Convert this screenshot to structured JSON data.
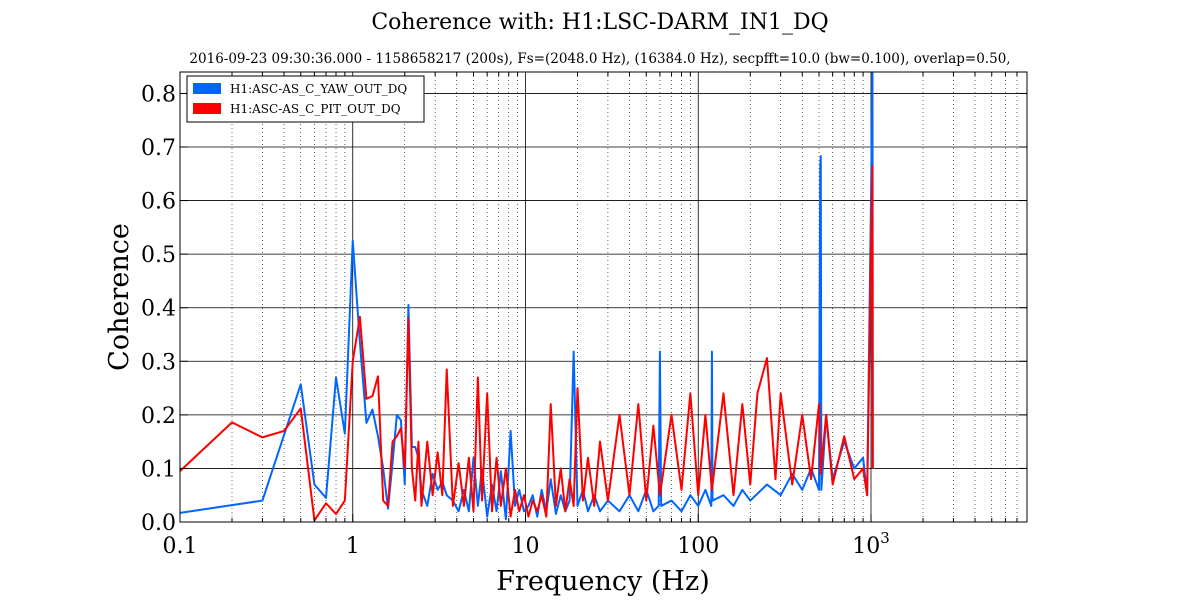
{
  "chart_data": {
    "type": "line",
    "title": "Coherence with:  H1:LSC-DARM_IN1_DQ",
    "subtitle": "2016-09-23 09:30:36.000 - 1158658217 (200s), Fs=(2048.0 Hz), (16384.0 Hz), secpfft=10.0 (bw=0.100), overlap=0.50,",
    "xlabel": "Frequency (Hz)",
    "ylabel": "Coherence",
    "xscale": "log",
    "xlim": [
      0.1,
      8000
    ],
    "ylim": [
      0.0,
      0.84
    ],
    "grid": true,
    "legend": "top-left",
    "xticks": [
      {
        "value": 0.1,
        "label": "0.1"
      },
      {
        "value": 1,
        "label": "1"
      },
      {
        "value": 10,
        "label": "10"
      },
      {
        "value": 100,
        "label": "100"
      },
      {
        "value": 1000,
        "label": "10",
        "exp": "3"
      }
    ],
    "yticks": [
      {
        "value": 0.0,
        "label": "0.0"
      },
      {
        "value": 0.1,
        "label": "0.1"
      },
      {
        "value": 0.2,
        "label": "0.2"
      },
      {
        "value": 0.3,
        "label": "0.3"
      },
      {
        "value": 0.4,
        "label": "0.4"
      },
      {
        "value": 0.5,
        "label": "0.5"
      },
      {
        "value": 0.6,
        "label": "0.6"
      },
      {
        "value": 0.7,
        "label": "0.7"
      },
      {
        "value": 0.8,
        "label": "0.8"
      }
    ],
    "series": [
      {
        "name": "H1:ASC-AS_C_YAW_OUT_DQ",
        "color": "#0066ff",
        "points": [
          [
            0.1,
            0.017
          ],
          [
            0.3,
            0.04
          ],
          [
            0.5,
            0.257
          ],
          [
            0.6,
            0.07
          ],
          [
            0.7,
            0.045
          ],
          [
            0.8,
            0.27
          ],
          [
            0.9,
            0.165
          ],
          [
            1.0,
            0.525
          ],
          [
            1.1,
            0.335
          ],
          [
            1.2,
            0.185
          ],
          [
            1.3,
            0.21
          ],
          [
            1.4,
            0.16
          ],
          [
            1.5,
            0.1
          ],
          [
            1.6,
            0.025
          ],
          [
            1.7,
            0.11
          ],
          [
            1.8,
            0.2
          ],
          [
            1.9,
            0.19
          ],
          [
            2.0,
            0.07
          ],
          [
            2.1,
            0.405
          ],
          [
            2.2,
            0.14
          ],
          [
            2.3,
            0.14
          ],
          [
            2.4,
            0.12
          ],
          [
            2.5,
            0.06
          ],
          [
            2.7,
            0.03
          ],
          [
            2.9,
            0.09
          ],
          [
            3.1,
            0.06
          ],
          [
            3.3,
            0.075
          ],
          [
            3.5,
            0.05
          ],
          [
            3.8,
            0.04
          ],
          [
            4.1,
            0.02
          ],
          [
            4.4,
            0.06
          ],
          [
            4.7,
            0.02
          ],
          [
            5.0,
            0.12
          ],
          [
            5.3,
            0.03
          ],
          [
            5.6,
            0.1
          ],
          [
            6.0,
            0.01
          ],
          [
            6.4,
            0.07
          ],
          [
            6.8,
            0.02
          ],
          [
            7.2,
            0.095
          ],
          [
            7.7,
            0.005
          ],
          [
            8.2,
            0.17
          ],
          [
            8.7,
            0.03
          ],
          [
            9.2,
            0.06
          ],
          [
            9.8,
            0.02
          ],
          [
            10.4,
            0.03
          ],
          [
            11.0,
            0.05
          ],
          [
            11.7,
            0.01
          ],
          [
            12.4,
            0.06
          ],
          [
            13.2,
            0.02
          ],
          [
            14.0,
            0.08
          ],
          [
            15.0,
            0.015
          ],
          [
            16.0,
            0.05
          ],
          [
            17.0,
            0.02
          ],
          [
            18.0,
            0.04
          ],
          [
            19.0,
            0.318
          ],
          [
            20.0,
            0.03
          ],
          [
            21.5,
            0.06
          ],
          [
            23.0,
            0.02
          ],
          [
            25.0,
            0.05
          ],
          [
            27.0,
            0.02
          ],
          [
            30.0,
            0.04
          ],
          [
            35.0,
            0.02
          ],
          [
            40.0,
            0.05
          ],
          [
            45.0,
            0.02
          ],
          [
            50.0,
            0.06
          ],
          [
            55.0,
            0.02
          ],
          [
            59.0,
            0.03
          ],
          [
            60.0,
            0.318
          ],
          [
            61.0,
            0.03
          ],
          [
            70.0,
            0.04
          ],
          [
            80.0,
            0.02
          ],
          [
            90.0,
            0.05
          ],
          [
            100.0,
            0.03
          ],
          [
            110.0,
            0.06
          ],
          [
            119.0,
            0.03
          ],
          [
            120.0,
            0.318
          ],
          [
            121.0,
            0.04
          ],
          [
            140.0,
            0.05
          ],
          [
            160.0,
            0.03
          ],
          [
            180.0,
            0.06
          ],
          [
            200.0,
            0.04
          ],
          [
            250.0,
            0.07
          ],
          [
            300.0,
            0.05
          ],
          [
            350.0,
            0.09
          ],
          [
            400.0,
            0.06
          ],
          [
            450.0,
            0.1
          ],
          [
            500.0,
            0.06
          ],
          [
            508.0,
            0.66
          ],
          [
            512.0,
            0.683
          ],
          [
            516.0,
            0.06
          ],
          [
            550.0,
            0.2
          ],
          [
            600.0,
            0.08
          ],
          [
            700.0,
            0.15
          ],
          [
            800.0,
            0.1
          ],
          [
            900.0,
            0.12
          ],
          [
            950.0,
            0.05
          ],
          [
            1000.0,
            0.6
          ],
          [
            1020.0,
            0.84
          ],
          [
            1024.0,
            0.1
          ]
        ]
      },
      {
        "name": "H1:ASC-AS_C_PIT_OUT_DQ",
        "color": "#ff0000",
        "points": [
          [
            0.1,
            0.095
          ],
          [
            0.2,
            0.186
          ],
          [
            0.3,
            0.158
          ],
          [
            0.4,
            0.17
          ],
          [
            0.5,
            0.212
          ],
          [
            0.6,
            0.003
          ],
          [
            0.7,
            0.035
          ],
          [
            0.8,
            0.015
          ],
          [
            0.9,
            0.04
          ],
          [
            1.0,
            0.3
          ],
          [
            1.1,
            0.383
          ],
          [
            1.2,
            0.23
          ],
          [
            1.3,
            0.235
          ],
          [
            1.4,
            0.272
          ],
          [
            1.5,
            0.04
          ],
          [
            1.6,
            0.03
          ],
          [
            1.7,
            0.15
          ],
          [
            1.8,
            0.16
          ],
          [
            1.9,
            0.175
          ],
          [
            2.0,
            0.1
          ],
          [
            2.1,
            0.38
          ],
          [
            2.2,
            0.1
          ],
          [
            2.3,
            0.04
          ],
          [
            2.4,
            0.15
          ],
          [
            2.5,
            0.03
          ],
          [
            2.7,
            0.15
          ],
          [
            2.9,
            0.05
          ],
          [
            3.1,
            0.13
          ],
          [
            3.3,
            0.05
          ],
          [
            3.5,
            0.285
          ],
          [
            3.8,
            0.03
          ],
          [
            4.1,
            0.11
          ],
          [
            4.4,
            0.03
          ],
          [
            4.7,
            0.12
          ],
          [
            5.0,
            0.02
          ],
          [
            5.3,
            0.27
          ],
          [
            5.6,
            0.04
          ],
          [
            6.0,
            0.24
          ],
          [
            6.4,
            0.02
          ],
          [
            6.8,
            0.12
          ],
          [
            7.2,
            0.03
          ],
          [
            7.7,
            0.1
          ],
          [
            8.2,
            0.01
          ],
          [
            8.7,
            0.06
          ],
          [
            9.2,
            0.02
          ],
          [
            9.8,
            0.05
          ],
          [
            10.4,
            0.01
          ],
          [
            11.0,
            0.04
          ],
          [
            11.7,
            0.02
          ],
          [
            12.4,
            0.05
          ],
          [
            13.2,
            0.01
          ],
          [
            14.0,
            0.22
          ],
          [
            15.0,
            0.03
          ],
          [
            16.0,
            0.1
          ],
          [
            17.0,
            0.02
          ],
          [
            18.0,
            0.08
          ],
          [
            19.0,
            0.03
          ],
          [
            20.0,
            0.25
          ],
          [
            21.5,
            0.04
          ],
          [
            23.0,
            0.12
          ],
          [
            25.0,
            0.03
          ],
          [
            27.0,
            0.15
          ],
          [
            30.0,
            0.04
          ],
          [
            35.0,
            0.2
          ],
          [
            40.0,
            0.05
          ],
          [
            45.0,
            0.22
          ],
          [
            50.0,
            0.04
          ],
          [
            55.0,
            0.18
          ],
          [
            60.0,
            0.05
          ],
          [
            70.0,
            0.2
          ],
          [
            80.0,
            0.06
          ],
          [
            90.0,
            0.24
          ],
          [
            100.0,
            0.05
          ],
          [
            110.0,
            0.2
          ],
          [
            120.0,
            0.06
          ],
          [
            140.0,
            0.24
          ],
          [
            160.0,
            0.05
          ],
          [
            180.0,
            0.22
          ],
          [
            200.0,
            0.07
          ],
          [
            220.0,
            0.24
          ],
          [
            250.0,
            0.306
          ],
          [
            280.0,
            0.08
          ],
          [
            300.0,
            0.24
          ],
          [
            350.0,
            0.07
          ],
          [
            400.0,
            0.2
          ],
          [
            450.0,
            0.08
          ],
          [
            500.0,
            0.22
          ],
          [
            512.0,
            0.09
          ],
          [
            550.0,
            0.2
          ],
          [
            600.0,
            0.07
          ],
          [
            700.0,
            0.16
          ],
          [
            800.0,
            0.08
          ],
          [
            900.0,
            0.1
          ],
          [
            950.0,
            0.05
          ],
          [
            1000.0,
            0.5
          ],
          [
            1020.0,
            0.665
          ],
          [
            1024.0,
            0.1
          ]
        ]
      }
    ]
  }
}
